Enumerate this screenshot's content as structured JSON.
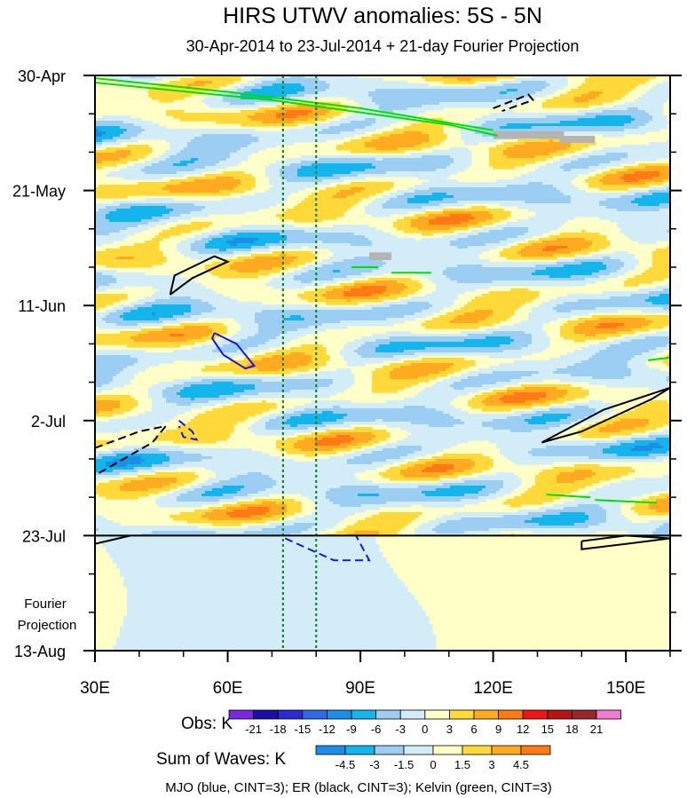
{
  "chart_data": {
    "type": "heatmap",
    "title": "HIRS UTWV anomalies: 5S - 5N",
    "subtitle": "30-Apr-2014 to 23-Jul-2014 + 21-day Fourier Projection",
    "x_ticks": [
      "30E",
      "60E",
      "90E",
      "120E",
      "150E"
    ],
    "x_tick_values": [
      30,
      60,
      90,
      120,
      150
    ],
    "xlim": [
      30,
      160
    ],
    "y_ticks": [
      "30-Apr",
      "21-May",
      "11-Jun",
      "2-Jul",
      "23-Jul",
      "13-Aug"
    ],
    "y_tick_days": [
      0,
      21,
      42,
      63,
      84,
      105
    ],
    "ylim_days": [
      0,
      105
    ],
    "projection_label_line1": "Fourier",
    "projection_label_line2": "Projection",
    "projection_start_day": 84,
    "reference_longitudes": [
      72.5,
      80
    ],
    "obs_legend": {
      "label": "Obs: K",
      "ticks": [
        "-21",
        "-18",
        "-15",
        "-12",
        "-9",
        "-6",
        "-3",
        "0",
        "3",
        "6",
        "9",
        "12",
        "15",
        "18",
        "21"
      ],
      "colors": [
        "#7a28e0",
        "#1a10a8",
        "#2a2ad0",
        "#2c6ae6",
        "#1c8ee8",
        "#14b4ec",
        "#9ccdf2",
        "#d2ecf8",
        "#ffffc8",
        "#ffd83a",
        "#ffaa20",
        "#ff7a14",
        "#f01414",
        "#b81414",
        "#962828",
        "#f07ad0"
      ]
    },
    "sum_legend": {
      "label": "Sum of Waves: K",
      "ticks": [
        "-4.5",
        "-3",
        "-1.5",
        "0",
        "1.5",
        "3",
        "4.5"
      ],
      "colors": [
        "#1c8ee8",
        "#14b4ec",
        "#9ccdf2",
        "#d2ecf8",
        "#ffffc8",
        "#ffd83a",
        "#ffaa20",
        "#ff7a14"
      ]
    },
    "footnote": "MJO (blue, CINT=3); ER (black, CINT=3); Kelvin (green, CINT=3)",
    "wave_contours": [
      {
        "wave": "Kelvin",
        "color": "#00e000",
        "style": "solid",
        "points": [
          [
            30,
            0.5
          ],
          [
            60,
            3
          ],
          [
            90,
            6
          ],
          [
            120,
            10
          ]
        ]
      },
      {
        "wave": "Kelvin",
        "color": "#00e000",
        "style": "solid",
        "points": [
          [
            30,
            1.3
          ],
          [
            70,
            4.5
          ],
          [
            110,
            9
          ],
          [
            121,
            11
          ]
        ]
      },
      {
        "wave": "ER",
        "color": "#000000",
        "style": "solid",
        "points": [
          [
            47,
            40
          ],
          [
            52,
            37
          ],
          [
            60,
            34
          ],
          [
            57,
            33
          ],
          [
            48,
            36.5
          ],
          [
            47,
            40
          ]
        ]
      },
      {
        "wave": "MJO",
        "color": "#1a1ad0",
        "style": "solid",
        "points": [
          [
            57,
            47
          ],
          [
            62,
            49
          ],
          [
            66,
            53
          ],
          [
            64,
            53.5
          ],
          [
            59,
            51
          ],
          [
            56.5,
            48
          ],
          [
            57,
            47
          ]
        ]
      },
      {
        "wave": "ER",
        "color": "#000000",
        "style": "solid",
        "points": [
          [
            131,
            67
          ],
          [
            145,
            61
          ],
          [
            160,
            57
          ],
          [
            156,
            59
          ],
          [
            140,
            65
          ],
          [
            131,
            67
          ]
        ]
      },
      {
        "wave": "ER",
        "color": "#000000",
        "style": "dashed",
        "points": [
          [
            30,
            68
          ],
          [
            40,
            65
          ],
          [
            46,
            64
          ],
          [
            43,
            67
          ],
          [
            30,
            73
          ]
        ]
      },
      {
        "wave": "MJO",
        "color": "#1a1ad0",
        "style": "dashed",
        "points": [
          [
            49,
            63
          ],
          [
            52,
            65
          ],
          [
            53,
            66.5
          ],
          [
            50,
            66
          ],
          [
            49,
            64
          ]
        ]
      },
      {
        "wave": "MJO",
        "color": "#1a1ad0",
        "style": "dashed",
        "points": [
          [
            73,
            84.5
          ],
          [
            84,
            88.5
          ],
          [
            92,
            88.5
          ],
          [
            89,
            84
          ]
        ]
      },
      {
        "wave": "ER",
        "color": "#000000",
        "style": "solid",
        "points": [
          [
            30,
            85.5
          ],
          [
            38,
            84
          ]
        ]
      },
      {
        "wave": "ER",
        "color": "#000000",
        "style": "solid",
        "points": [
          [
            140,
            85
          ],
          [
            150,
            84
          ],
          [
            160,
            84.5
          ],
          [
            150,
            85.5
          ],
          [
            140,
            86.5
          ],
          [
            140,
            85
          ]
        ]
      },
      {
        "wave": "ER",
        "color": "#000000",
        "style": "dashed",
        "points": [
          [
            120,
            6
          ],
          [
            128,
            3.5
          ],
          [
            129,
            4.5
          ],
          [
            122,
            6.5
          ]
        ]
      },
      {
        "wave": "Kelvin",
        "color": "#00e000",
        "style": "solid",
        "points": [
          [
            88,
            35
          ],
          [
            94,
            35
          ]
        ]
      },
      {
        "wave": "Kelvin",
        "color": "#00e000",
        "style": "solid",
        "points": [
          [
            97,
            36
          ],
          [
            106,
            36
          ]
        ]
      },
      {
        "wave": "Kelvin",
        "color": "#00e000",
        "style": "solid",
        "points": [
          [
            132,
            76.5
          ],
          [
            142,
            77
          ]
        ]
      },
      {
        "wave": "Kelvin",
        "color": "#00e000",
        "style": "solid",
        "points": [
          [
            143,
            77.5
          ],
          [
            157,
            78
          ]
        ]
      },
      {
        "wave": "Kelvin",
        "color": "#00e000",
        "style": "solid",
        "points": [
          [
            155,
            52
          ],
          [
            160,
            51.5
          ]
        ]
      }
    ],
    "missing_data_patches": [
      {
        "lon": [
          120,
          136
        ],
        "day": [
          10.2,
          11.6
        ]
      },
      {
        "lon": [
          135,
          143
        ],
        "day": [
          11,
          12.3
        ]
      },
      {
        "lon": [
          92,
          97
        ],
        "day": [
          32.3,
          33.7
        ]
      }
    ]
  }
}
